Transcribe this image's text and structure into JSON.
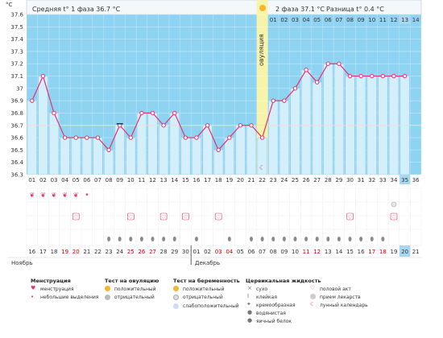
{
  "header": {
    "y_unit": "°C",
    "phase1": "Средняя t° 1 фаза 36.7 °C",
    "phase2": "2 фаза 37.1 °C",
    "diff": "Разница t° 0.4 °C",
    "ovulation_label": "овуляция"
  },
  "chart_data": {
    "type": "line",
    "ylim": [
      36.3,
      37.6
    ],
    "yticks": [
      "37.6",
      "37.5",
      "37.4",
      "37.3",
      "37.2",
      "37.1",
      "37",
      "36.9",
      "36.8",
      "36.7",
      "36.6",
      "36.5",
      "36.4",
      "36.3"
    ],
    "cycle_days": [
      "01",
      "02",
      "03",
      "04",
      "05",
      "06",
      "07",
      "08",
      "09",
      "10",
      "11",
      "12",
      "13",
      "14",
      "15",
      "16",
      "17",
      "18",
      "19",
      "20",
      "21",
      "22",
      "23",
      "24",
      "25",
      "26",
      "27",
      "28",
      "29",
      "30",
      "31",
      "32",
      "33",
      "34",
      "35",
      "36"
    ],
    "top_days": [
      "01",
      "02",
      "03",
      "04",
      "05",
      "06",
      "07",
      "08",
      "09",
      "10",
      "11",
      "12",
      "13",
      "14"
    ],
    "dates": [
      "16",
      "17",
      "18",
      "19",
      "20",
      "21",
      "22",
      "23",
      "24",
      "25",
      "26",
      "27",
      "28",
      "29",
      "30",
      "01",
      "02",
      "03",
      "04",
      "05",
      "06",
      "07",
      "08",
      "09",
      "10",
      "11",
      "12",
      "13",
      "14",
      "15",
      "16",
      "17",
      "18",
      "19",
      "20",
      "21"
    ],
    "date_colors": [
      "#333",
      "#333",
      "#333",
      "#cc0000",
      "#cc0000",
      "#333",
      "#333",
      "#333",
      "#333",
      "#cc0000",
      "#cc0000",
      "#cc0000",
      "#333",
      "#333",
      "#333",
      "#333",
      "#333",
      "#cc0000",
      "#cc0000",
      "#333",
      "#333",
      "#333",
      "#333",
      "#333",
      "#333",
      "#cc0000",
      "#cc0000",
      "#333",
      "#333",
      "#333",
      "#333",
      "#cc0000",
      "#cc0000",
      "#333",
      "#333",
      "#333"
    ],
    "months": [
      "Ноябрь",
      "Декабрь"
    ],
    "values": [
      36.9,
      37.1,
      36.8,
      36.6,
      36.6,
      36.6,
      36.6,
      36.5,
      36.7,
      36.6,
      36.8,
      36.8,
      36.7,
      36.8,
      36.6,
      36.6,
      36.7,
      36.5,
      36.6,
      36.7,
      36.7,
      36.6,
      36.9,
      36.9,
      37.0,
      37.15,
      37.05,
      37.2,
      37.2,
      37.1,
      37.1,
      37.1,
      37.1,
      37.1,
      37.1,
      null
    ],
    "coverline": 36.7,
    "ovulation_day": 22,
    "current_day": 35,
    "menstruation_days": [
      1,
      2,
      3,
      4,
      5
    ],
    "spotting_days": [
      6
    ],
    "intercourse_days": [
      5,
      10,
      13,
      15,
      18,
      30,
      34
    ],
    "cervical_days": [
      8,
      9,
      10,
      11,
      12,
      13,
      14,
      16,
      19,
      21,
      22,
      23,
      24,
      25,
      26,
      27,
      28,
      29,
      30,
      31,
      32,
      33
    ]
  },
  "legend": {
    "menstruation": {
      "title": "Менструация",
      "items": [
        "менструация",
        "небольшие выделения"
      ]
    },
    "ovulation_test": {
      "title": "Тест на овуляцию",
      "items": [
        "положительный",
        "отрицательный"
      ]
    },
    "pregnancy_test": {
      "title": "Тест на беременность",
      "items": [
        "положительный",
        "отрицательный",
        "слабоположительный"
      ]
    },
    "cervical_fluid": {
      "title": "Цервикальная жидкость",
      "items": [
        "сухо",
        "клейкая",
        "кремообразная",
        "водянистая",
        "яичный белок"
      ]
    },
    "other": {
      "items": [
        "половой акт",
        "прием лекарств",
        "лунный календарь"
      ]
    }
  },
  "colors": {
    "chart_bg": "#8fd3f2",
    "bar_fill": "#d4effc",
    "line": "#e5336e",
    "ovulation": "#f7f3a8",
    "current": "#a8d8f0"
  }
}
